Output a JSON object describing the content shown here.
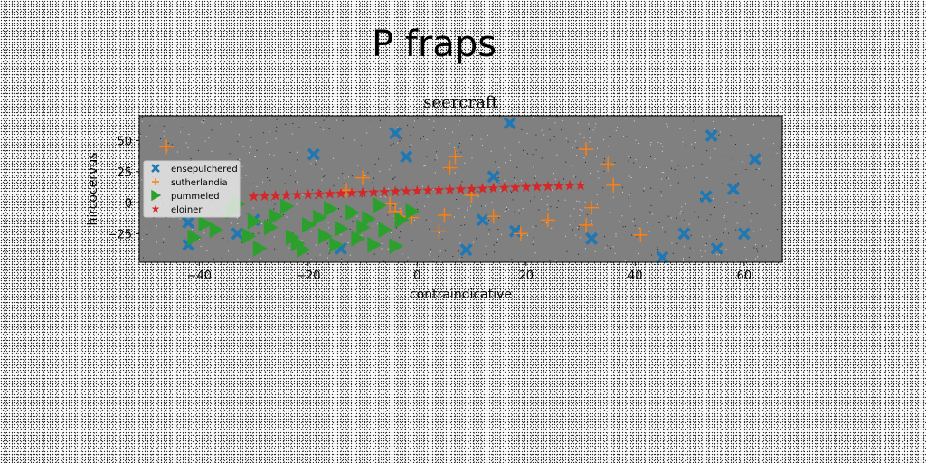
{
  "figure": {
    "suptitle": "P fraps"
  },
  "colors": {
    "plot_background": "#808080",
    "ensepulchered": "#1f77b4",
    "sutherlandia": "#ff7f0e",
    "pummeled": "#2ca02c",
    "eloiner": "#d62728"
  },
  "chart_data": {
    "type": "scatter",
    "title": "seercraft",
    "xlabel": "contraindicative",
    "ylabel": "hircocervus",
    "xlim": [
      -51,
      67
    ],
    "ylim": [
      -48,
      70
    ],
    "xticks": [
      -40,
      -20,
      0,
      20,
      40,
      60
    ],
    "yticks": [
      -25,
      0,
      25,
      50
    ],
    "grid": false,
    "legend_position": "center-left",
    "series": [
      {
        "name": "ensepulchered",
        "marker": "X",
        "points": [
          [
            -42,
            -34
          ],
          [
            -42,
            -16
          ],
          [
            -33,
            -25
          ],
          [
            -30,
            -14
          ],
          [
            -19,
            39
          ],
          [
            -14,
            -37
          ],
          [
            -4,
            56
          ],
          [
            -2,
            37
          ],
          [
            9,
            -38
          ],
          [
            12,
            -14
          ],
          [
            14,
            21
          ],
          [
            17,
            64
          ],
          [
            18,
            -23
          ],
          [
            32,
            -29
          ],
          [
            45,
            -44
          ],
          [
            49,
            -25
          ],
          [
            53,
            5
          ],
          [
            54,
            54
          ],
          [
            55,
            -37
          ],
          [
            58,
            11
          ],
          [
            60,
            -25
          ],
          [
            62,
            35
          ]
        ]
      },
      {
        "name": "sutherlandia",
        "marker": "+",
        "points": [
          [
            -46,
            45
          ],
          [
            -13,
            10
          ],
          [
            -10,
            20
          ],
          [
            -5,
            -1
          ],
          [
            -4,
            -7
          ],
          [
            -3,
            -11
          ],
          [
            -1,
            -12
          ],
          [
            4,
            -23
          ],
          [
            5,
            -10
          ],
          [
            6,
            28
          ],
          [
            7,
            37
          ],
          [
            10,
            6
          ],
          [
            14,
            -11
          ],
          [
            19,
            -25
          ],
          [
            24,
            -14
          ],
          [
            31,
            43
          ],
          [
            31,
            -18
          ],
          [
            32,
            -4
          ],
          [
            35,
            31
          ],
          [
            36,
            14
          ],
          [
            41,
            -26
          ]
        ]
      },
      {
        "name": "pummeled",
        "marker": ">",
        "points": [
          [
            -41,
            -28
          ],
          [
            -39,
            -17
          ],
          [
            -37,
            -22
          ],
          [
            -34,
            -7
          ],
          [
            -33,
            -1
          ],
          [
            -31,
            -27
          ],
          [
            -30,
            -15
          ],
          [
            -29,
            -37
          ],
          [
            -27,
            -20
          ],
          [
            -26,
            -11
          ],
          [
            -24,
            -3
          ],
          [
            -23,
            -28
          ],
          [
            -22,
            -33
          ],
          [
            -21,
            -38
          ],
          [
            -20,
            -18
          ],
          [
            -18,
            -12
          ],
          [
            -17,
            -27
          ],
          [
            -16,
            -5
          ],
          [
            -15,
            -34
          ],
          [
            -14,
            -21
          ],
          [
            -12,
            -8
          ],
          [
            -11,
            -29
          ],
          [
            -10,
            -20
          ],
          [
            -9,
            -13
          ],
          [
            -8,
            -34
          ],
          [
            -7,
            -2
          ],
          [
            -6,
            -22
          ],
          [
            -4,
            -35
          ],
          [
            -3,
            -14
          ],
          [
            -1,
            -7
          ]
        ]
      },
      {
        "name": "eloiner",
        "marker": "*",
        "points": [
          [
            -30,
            5
          ],
          [
            -28,
            5.3
          ],
          [
            -26,
            5.6
          ],
          [
            -24,
            5.9
          ],
          [
            -22,
            6.2
          ],
          [
            -20,
            6.5
          ],
          [
            -18,
            6.8
          ],
          [
            -16,
            7.1
          ],
          [
            -14,
            7.4
          ],
          [
            -12,
            7.7
          ],
          [
            -10,
            8
          ],
          [
            -8,
            8.3
          ],
          [
            -6,
            8.6
          ],
          [
            -4,
            8.9
          ],
          [
            -2,
            9.2
          ],
          [
            0,
            9.5
          ],
          [
            2,
            9.8
          ],
          [
            4,
            10.1
          ],
          [
            6,
            10.4
          ],
          [
            8,
            10.7
          ],
          [
            10,
            11
          ],
          [
            12,
            11.3
          ],
          [
            14,
            11.6
          ],
          [
            16,
            11.9
          ],
          [
            18,
            12.2
          ],
          [
            20,
            12.5
          ],
          [
            22,
            12.8
          ],
          [
            24,
            13.1
          ],
          [
            26,
            13.4
          ],
          [
            28,
            13.7
          ],
          [
            30,
            14
          ]
        ]
      }
    ]
  }
}
